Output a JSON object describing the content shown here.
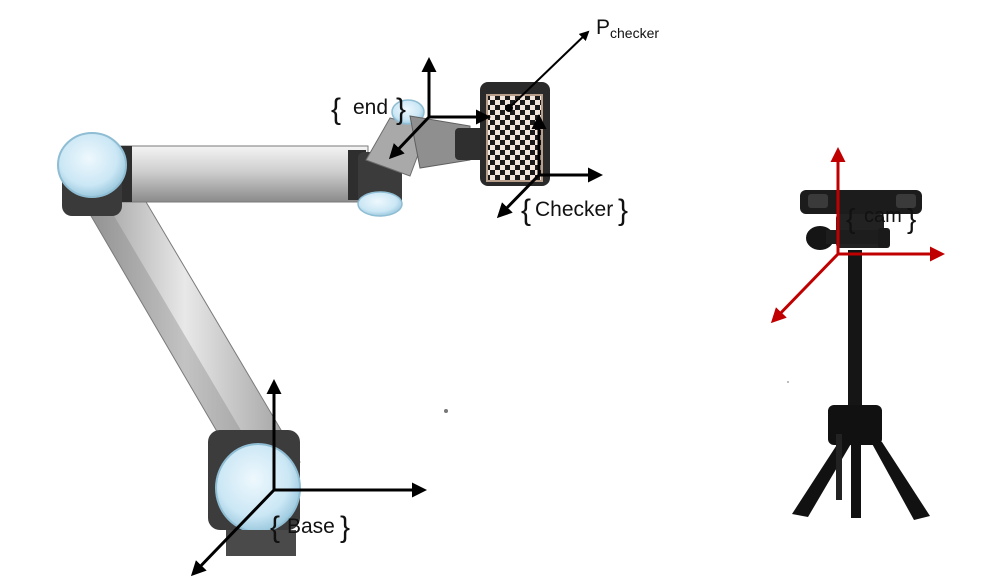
{
  "labels": {
    "end": "end",
    "checker": "Checker",
    "cam": "cam",
    "base": "Base",
    "p_main": "P",
    "p_sub": "checker"
  },
  "colors": {
    "axes_black": "#000000",
    "axes_red": "#c00000",
    "arm_link": "#c9c9c9",
    "joint_blue": "#cde9f6",
    "joint_dark": "#3a3a3a",
    "tripod": "#111111"
  }
}
